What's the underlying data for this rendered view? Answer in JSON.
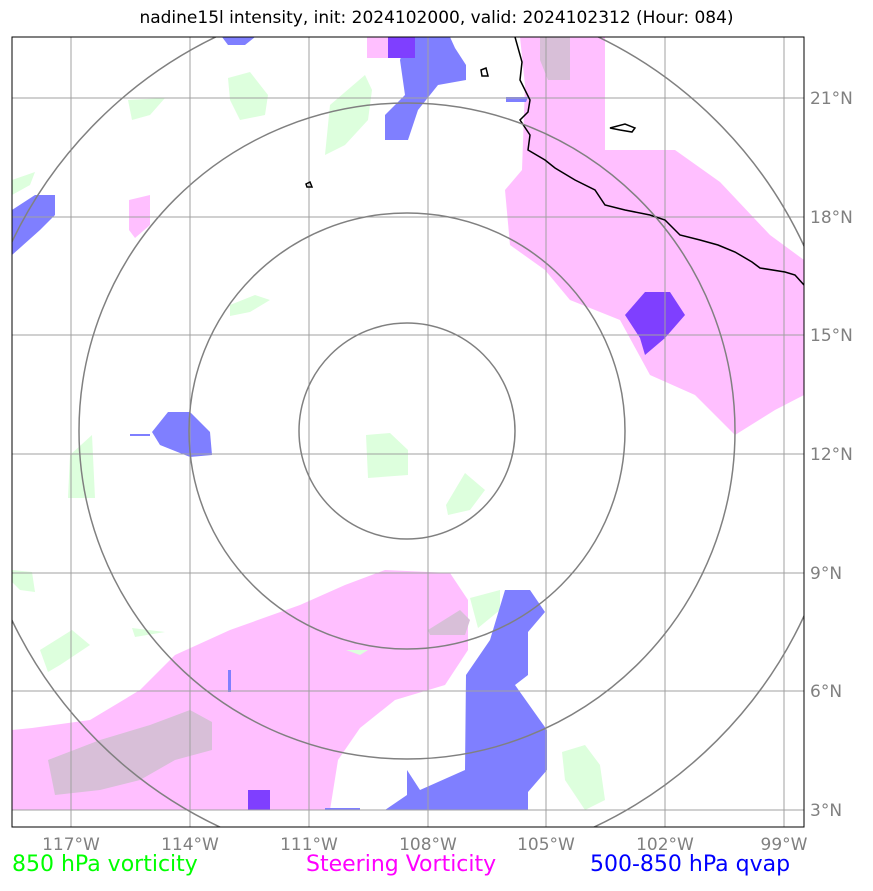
{
  "title": "nadine15l intensity, init: 2024102000, valid: 2024102312 (Hour: 084)",
  "axes": {
    "lon_ticks": [
      "117°W",
      "114°W",
      "111°W",
      "108°W",
      "105°W",
      "102°W",
      "99°W"
    ],
    "lat_ticks": [
      "3°N",
      "6°N",
      "9°N",
      "12°N",
      "15°N",
      "18°N",
      "21°N"
    ]
  },
  "legend": [
    {
      "label": "850 hPa vorticity",
      "color": "#00ff00"
    },
    {
      "label": "Steering Vorticity",
      "color": "#ff00ff"
    },
    {
      "label": "500-850 hPa qvap",
      "color": "#0000ff"
    }
  ],
  "colors": {
    "vorticity_850": "#ddffdd",
    "steering_vorticity": "#ffbfff",
    "qvap_light": "#7f7fff",
    "qvap_dark": "#7f3fff",
    "overlap": "#d8bfd8",
    "range_rings": "#808080",
    "gridlines": "#a0a0a0",
    "coastline": "#000000"
  },
  "map": {
    "center": {
      "lon": -108.5,
      "lat": 12.5
    },
    "extent": {
      "lon_min": -118.5,
      "lon_max": -98.5,
      "lat_min": 2.5,
      "lat_max": 22.5
    },
    "grid": true,
    "range_rings": 4
  }
}
